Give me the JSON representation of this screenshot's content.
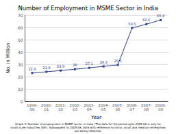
{
  "chart_data": {
    "type": "line",
    "title": "Number of Employment in MSME Sector in India",
    "xlabel": "Year",
    "ylabel": "No. in Million",
    "categories": [
      "1999-\n00",
      "2000-\n01",
      "2001-\n02",
      "2002-\n03",
      "2003-\n04",
      "2004-\n05",
      "2005-\n06",
      "2006-\n07",
      "2007-\n08",
      "2008-\n09"
    ],
    "values": [
      22.9,
      23.9,
      24.9,
      26,
      27.1,
      28.3,
      29.5,
      59.5,
      62.6,
      65.9
    ],
    "color": "#2b3f8c",
    "marker": "square",
    "data_labels": true,
    "ylim": [
      0,
      70
    ],
    "yticks": [
      0,
      10,
      20,
      30,
      40,
      50,
      60,
      70
    ],
    "grid": true,
    "caption": [
      "Graph 3: Number of employment in MSME sector in India *The data for the period upto 2005-06 is only for",
      "small scale industries (SSI). Subsequent to 2005-06, data with reference to micro, small and medium enterprises",
      "are being reflected."
    ]
  }
}
